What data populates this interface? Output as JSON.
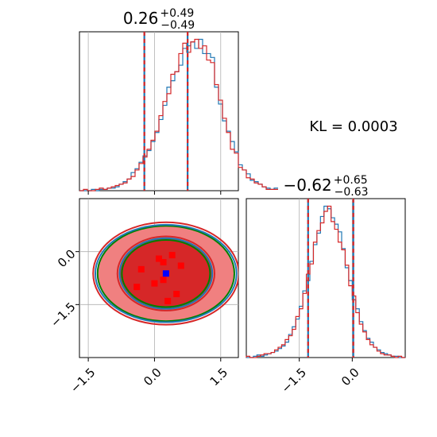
{
  "chart_data": [
    {
      "type": "histogram",
      "panel": "marginal-x",
      "title": {
        "value": "0.26",
        "plus": "+0.49",
        "minus": "−0.49"
      },
      "xlim": [
        -1.7,
        1.9
      ],
      "xticks": [
        -1.5,
        0.0,
        1.5
      ],
      "median": 0.26,
      "quantile_lines": [
        -0.23,
        0.75
      ],
      "bins": {
        "start": -1.7,
        "width": 0.09
      },
      "series": [
        {
          "name": "blue",
          "color": "#1f77b4",
          "values": [
            0,
            0,
            0,
            1,
            0,
            1,
            1,
            2,
            2,
            3,
            5,
            7,
            9,
            14,
            17,
            22,
            27,
            31,
            38,
            45,
            55,
            66,
            80,
            85,
            92,
            97,
            110,
            112,
            115,
            110,
            117,
            106,
            106,
            103,
            80,
            67,
            54,
            46,
            38,
            30,
            20,
            16,
            13,
            8,
            7,
            5,
            3,
            2,
            1,
            2
          ]
        },
        {
          "name": "red",
          "color": "#d62728",
          "values": [
            0,
            1,
            0,
            0,
            1,
            2,
            1,
            2,
            3,
            4,
            5,
            6,
            9,
            11,
            16,
            21,
            26,
            32,
            39,
            46,
            58,
            69,
            75,
            90,
            92,
            106,
            114,
            107,
            115,
            117,
            110,
            112,
            101,
            99,
            82,
            70,
            56,
            45,
            32,
            29,
            18,
            16,
            10,
            9,
            6,
            5,
            3,
            1,
            1,
            1
          ]
        }
      ]
    },
    {
      "type": "contour",
      "panel": "joint",
      "xlim": [
        -1.7,
        1.9
      ],
      "ylim": [
        -3.0,
        1.5
      ],
      "xticks": [
        -1.5,
        0.0,
        1.5
      ],
      "yticks": [
        0.0,
        -1.5
      ],
      "center": [
        0.26,
        -0.62
      ],
      "marker_color": "#0000ff",
      "samples": [
        [
          0.1,
          -0.2
        ],
        [
          0.4,
          -0.1
        ],
        [
          0.2,
          -0.8
        ],
        [
          0.0,
          -0.9
        ],
        [
          0.5,
          -1.2
        ],
        [
          0.3,
          -1.4
        ],
        [
          -0.3,
          -0.5
        ],
        [
          -0.4,
          -1.0
        ],
        [
          0.6,
          -0.4
        ],
        [
          0.2,
          -0.3
        ]
      ],
      "filled_levels": [
        {
          "rx": 1.55,
          "ry": 1.35,
          "color": "#f08080"
        },
        {
          "rx": 1.05,
          "ry": 1.0,
          "color": "#d62728"
        }
      ],
      "contours": [
        {
          "name": "green",
          "color": "#008000",
          "levels": [
            [
              1.55,
              1.35
            ],
            [
              1.0,
              0.95
            ]
          ]
        },
        {
          "name": "red",
          "color": "#d62728",
          "levels": [
            [
              1.65,
              1.45
            ],
            [
              1.1,
              1.05
            ]
          ]
        },
        {
          "name": "blue",
          "color": "#1f77b4",
          "levels": [
            [
              1.6,
              1.38
            ],
            [
              1.05,
              1.0
            ]
          ]
        }
      ]
    },
    {
      "type": "histogram",
      "panel": "marginal-y",
      "title": {
        "value": "−0.62",
        "plus": "+0.65",
        "minus": "−0.63"
      },
      "xlim": [
        -3.0,
        1.5
      ],
      "xticks": [
        -1.5,
        0.0
      ],
      "median": -0.62,
      "quantile_lines": [
        -1.25,
        0.03
      ],
      "bins": {
        "start": -3.0,
        "width": 0.1
      },
      "series": [
        {
          "name": "blue",
          "color": "#1f77b4",
          "values": [
            0,
            0,
            1,
            2,
            1,
            2,
            3,
            4,
            5,
            7,
            9,
            12,
            18,
            24,
            30,
            40,
            52,
            60,
            75,
            88,
            97,
            110,
            118,
            116,
            109,
            104,
            98,
            85,
            70,
            60,
            45,
            38,
            28,
            21,
            15,
            12,
            8,
            6,
            4,
            3,
            2,
            1,
            1,
            0,
            0
          ]
        },
        {
          "name": "red",
          "color": "#d62728",
          "values": [
            1,
            0,
            0,
            1,
            2,
            3,
            3,
            4,
            6,
            8,
            10,
            14,
            17,
            22,
            32,
            38,
            50,
            65,
            73,
            90,
            99,
            105,
            114,
            118,
            106,
            100,
            90,
            84,
            72,
            56,
            48,
            35,
            26,
            20,
            14,
            10,
            8,
            5,
            3,
            2,
            2,
            1,
            0,
            1,
            0
          ]
        }
      ]
    }
  ],
  "annotation": {
    "kl_label": "KL = 0.0003"
  }
}
